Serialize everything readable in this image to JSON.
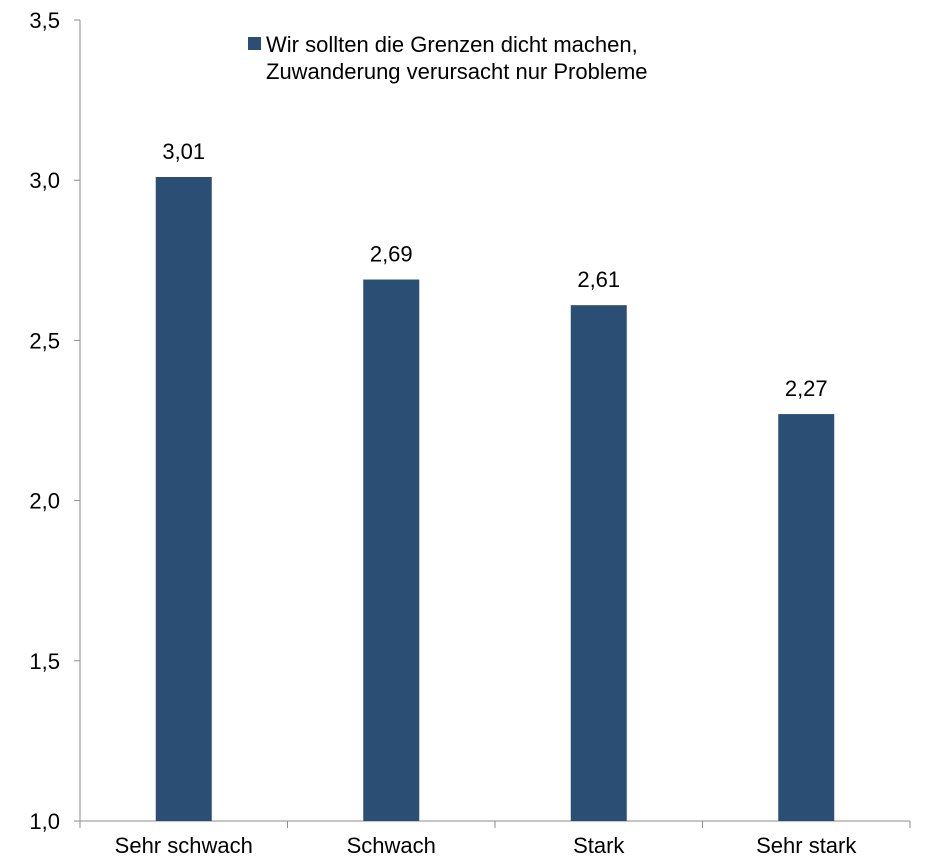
{
  "chart_data": {
    "type": "bar",
    "categories": [
      "Sehr schwach",
      "Schwach",
      "Stark",
      "Sehr stark"
    ],
    "series": [
      {
        "name": "Wir sollten die Grenzen dicht machen, Zuwanderung verursacht nur Probleme",
        "legend_lines": [
          "Wir sollten die Grenzen dicht machen,",
          "Zuwanderung verursacht nur Probleme"
        ],
        "values": [
          3.01,
          2.69,
          2.61,
          2.27
        ],
        "value_labels": [
          "3,01",
          "2,69",
          "2,61",
          "2,27"
        ],
        "color": "#2a4e74"
      }
    ],
    "title": "",
    "xlabel": "",
    "ylabel": "",
    "ylim": [
      1.0,
      3.5
    ],
    "yticks": [
      1.0,
      1.5,
      2.0,
      2.5,
      3.0,
      3.5
    ],
    "ytick_labels": [
      "1,0",
      "1,5",
      "2,0",
      "2,5",
      "3,0",
      "3,5"
    ],
    "grid": false,
    "legend_position": "top"
  }
}
